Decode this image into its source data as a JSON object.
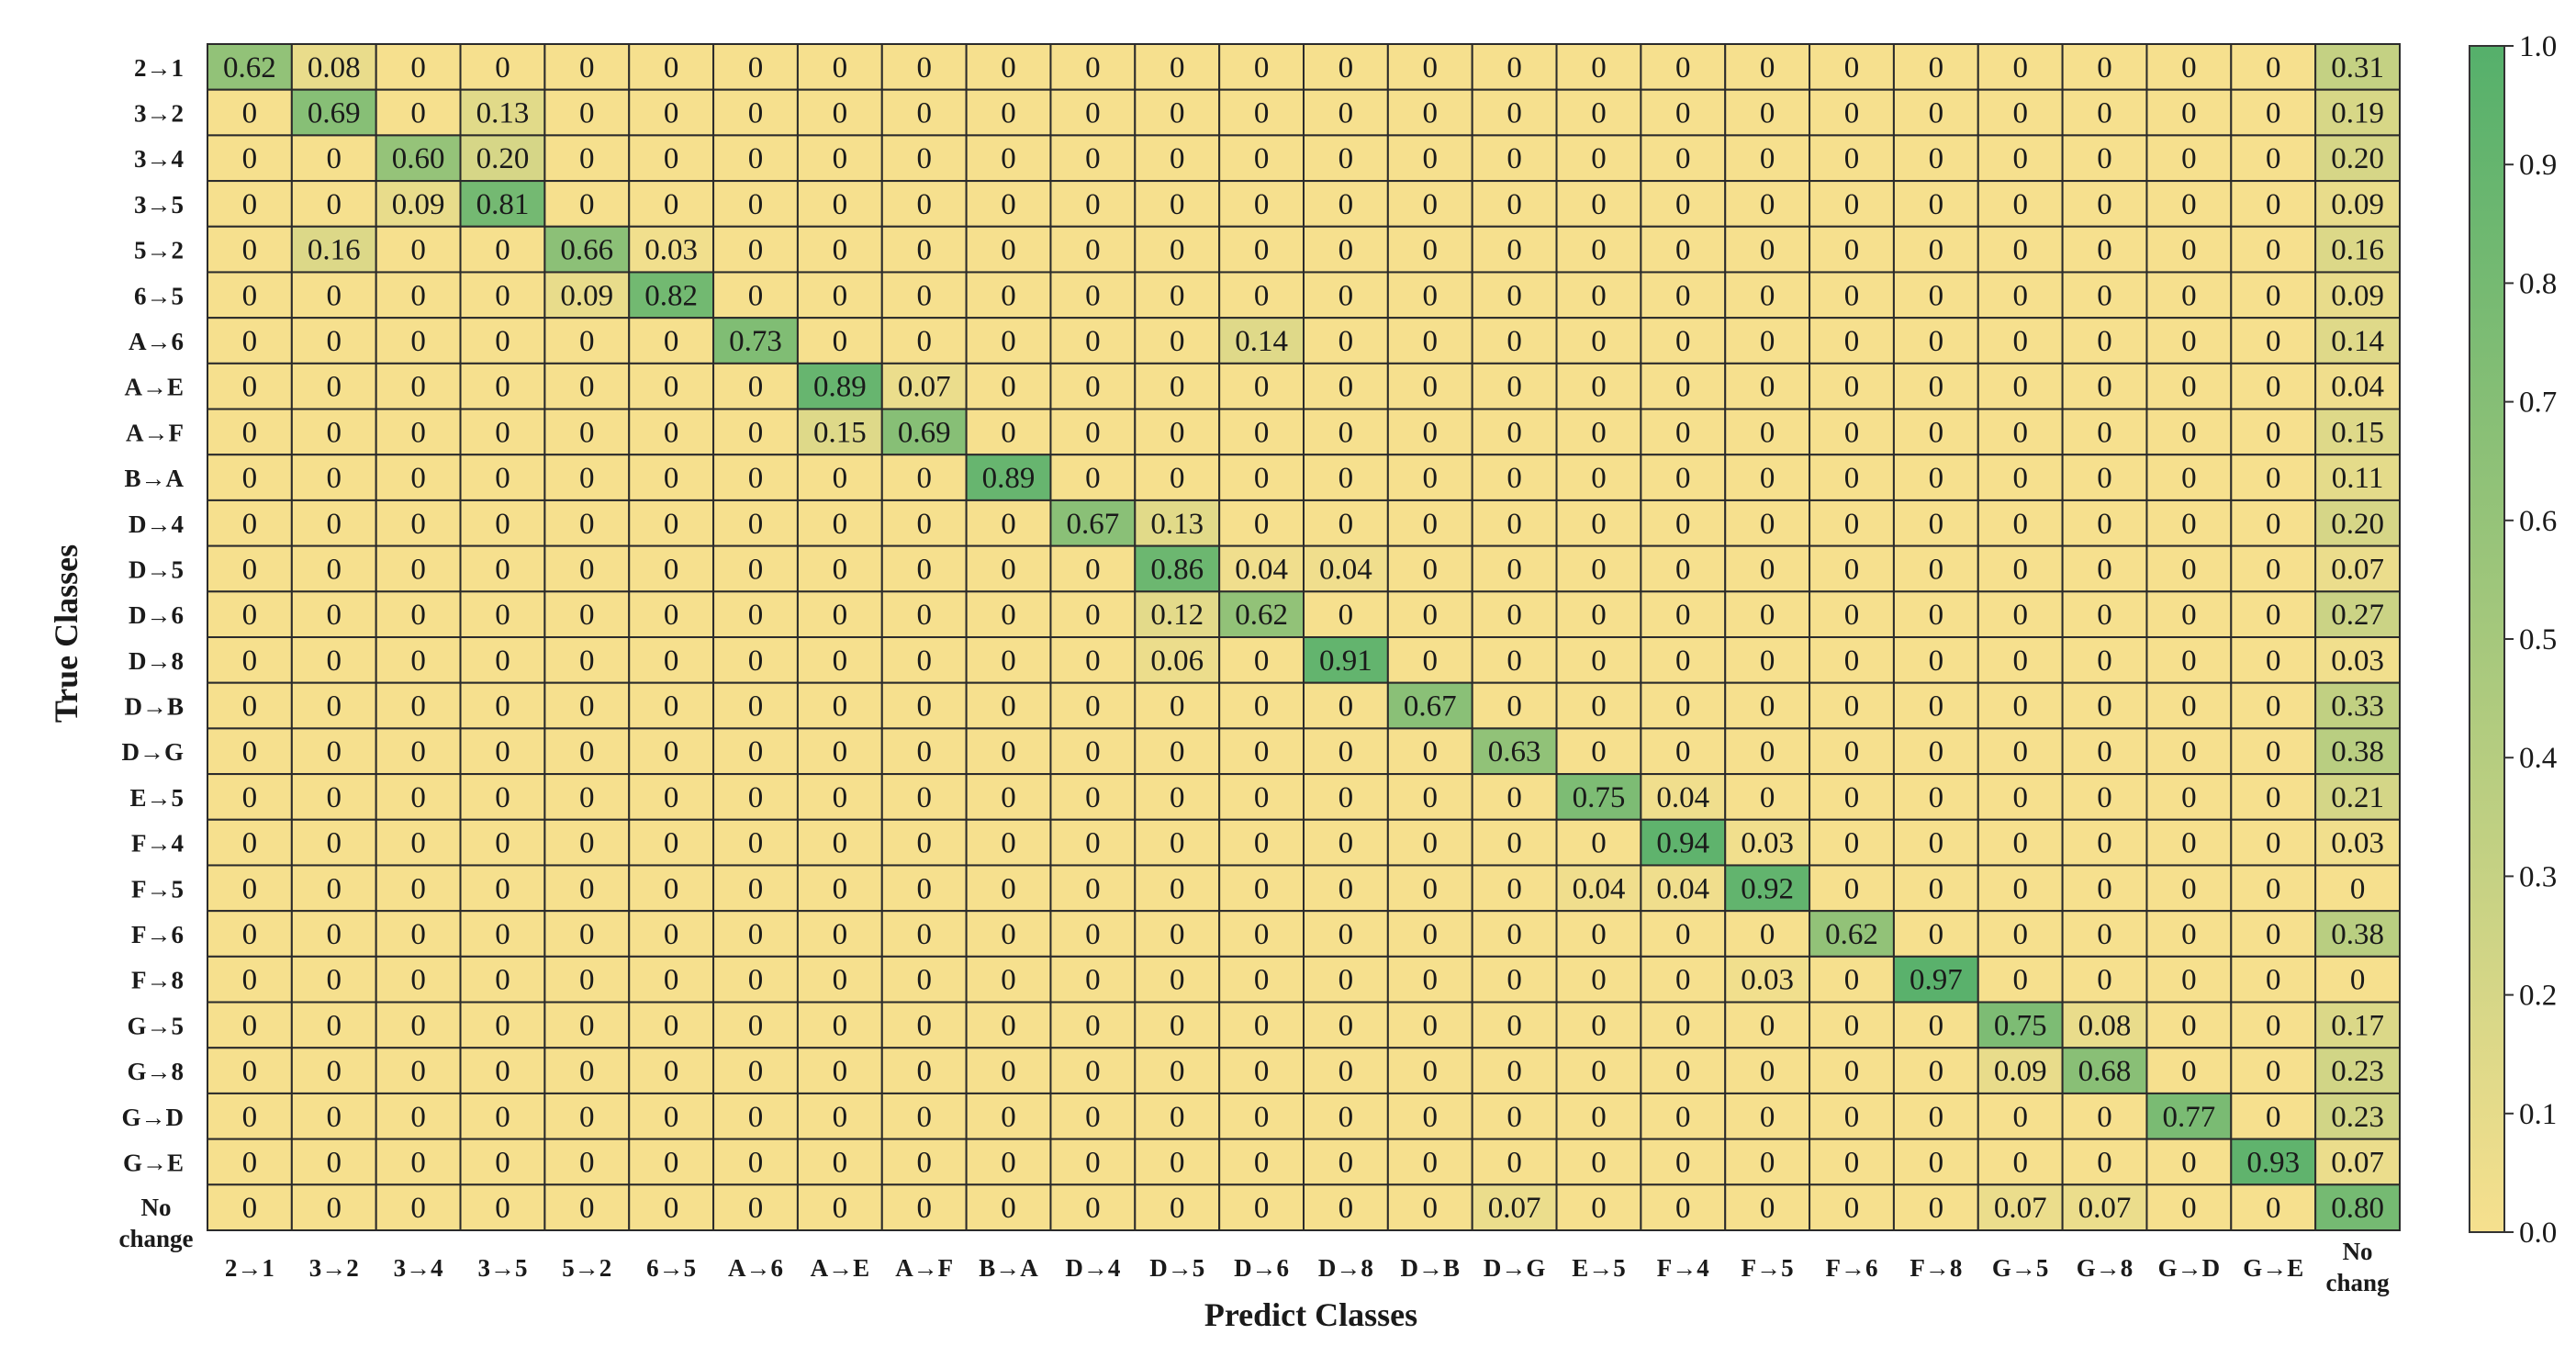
{
  "chart_data": {
    "type": "heatmap",
    "title": "",
    "xlabel": "Predict Classes",
    "ylabel": "True Classes",
    "row_labels": [
      "2→1",
      "3→2",
      "3→4",
      "3→5",
      "5→2",
      "6→5",
      "A→6",
      "A→E",
      "A→F",
      "B→A",
      "D→4",
      "D→5",
      "D→6",
      "D→8",
      "D→B",
      "D→G",
      "E→5",
      "F→4",
      "F→5",
      "F→6",
      "F→8",
      "G→5",
      "G→8",
      "G→D",
      "G→E",
      "No change"
    ],
    "col_labels": [
      "2→1",
      "3→2",
      "3→4",
      "3→5",
      "5→2",
      "6→5",
      "A→6",
      "A→E",
      "A→F",
      "B→A",
      "D→4",
      "D→5",
      "D→6",
      "D→8",
      "D→B",
      "D→G",
      "E→5",
      "F→4",
      "F→5",
      "F→6",
      "F→8",
      "G→5",
      "G→8",
      "G→D",
      "G→E",
      "No chang"
    ],
    "values": [
      [
        "0.62",
        "0.08",
        "0",
        "0",
        "0",
        "0",
        "0",
        "0",
        "0",
        "0",
        "0",
        "0",
        "0",
        "0",
        "0",
        "0",
        "0",
        "0",
        "0",
        "0",
        "0",
        "0",
        "0",
        "0",
        "0",
        "0.31"
      ],
      [
        "0",
        "0.69",
        "0",
        "0.13",
        "0",
        "0",
        "0",
        "0",
        "0",
        "0",
        "0",
        "0",
        "0",
        "0",
        "0",
        "0",
        "0",
        "0",
        "0",
        "0",
        "0",
        "0",
        "0",
        "0",
        "0",
        "0.19"
      ],
      [
        "0",
        "0",
        "0.60",
        "0.20",
        "0",
        "0",
        "0",
        "0",
        "0",
        "0",
        "0",
        "0",
        "0",
        "0",
        "0",
        "0",
        "0",
        "0",
        "0",
        "0",
        "0",
        "0",
        "0",
        "0",
        "0",
        "0.20"
      ],
      [
        "0",
        "0",
        "0.09",
        "0.81",
        "0",
        "0",
        "0",
        "0",
        "0",
        "0",
        "0",
        "0",
        "0",
        "0",
        "0",
        "0",
        "0",
        "0",
        "0",
        "0",
        "0",
        "0",
        "0",
        "0",
        "0",
        "0.09"
      ],
      [
        "0",
        "0.16",
        "0",
        "0",
        "0.66",
        "0.03",
        "0",
        "0",
        "0",
        "0",
        "0",
        "0",
        "0",
        "0",
        "0",
        "0",
        "0",
        "0",
        "0",
        "0",
        "0",
        "0",
        "0",
        "0",
        "0",
        "0.16"
      ],
      [
        "0",
        "0",
        "0",
        "0",
        "0.09",
        "0.82",
        "0",
        "0",
        "0",
        "0",
        "0",
        "0",
        "0",
        "0",
        "0",
        "0",
        "0",
        "0",
        "0",
        "0",
        "0",
        "0",
        "0",
        "0",
        "0",
        "0.09"
      ],
      [
        "0",
        "0",
        "0",
        "0",
        "0",
        "0",
        "0.73",
        "0",
        "0",
        "0",
        "0",
        "0",
        "0.14",
        "0",
        "0",
        "0",
        "0",
        "0",
        "0",
        "0",
        "0",
        "0",
        "0",
        "0",
        "0",
        "0.14"
      ],
      [
        "0",
        "0",
        "0",
        "0",
        "0",
        "0",
        "0",
        "0.89",
        "0.07",
        "0",
        "0",
        "0",
        "0",
        "0",
        "0",
        "0",
        "0",
        "0",
        "0",
        "0",
        "0",
        "0",
        "0",
        "0",
        "0",
        "0.04"
      ],
      [
        "0",
        "0",
        "0",
        "0",
        "0",
        "0",
        "0",
        "0.15",
        "0.69",
        "0",
        "0",
        "0",
        "0",
        "0",
        "0",
        "0",
        "0",
        "0",
        "0",
        "0",
        "0",
        "0",
        "0",
        "0",
        "0",
        "0.15"
      ],
      [
        "0",
        "0",
        "0",
        "0",
        "0",
        "0",
        "0",
        "0",
        "0",
        "0.89",
        "0",
        "0",
        "0",
        "0",
        "0",
        "0",
        "0",
        "0",
        "0",
        "0",
        "0",
        "0",
        "0",
        "0",
        "0",
        "0.11"
      ],
      [
        "0",
        "0",
        "0",
        "0",
        "0",
        "0",
        "0",
        "0",
        "0",
        "0",
        "0.67",
        "0.13",
        "0",
        "0",
        "0",
        "0",
        "0",
        "0",
        "0",
        "0",
        "0",
        "0",
        "0",
        "0",
        "0",
        "0.20"
      ],
      [
        "0",
        "0",
        "0",
        "0",
        "0",
        "0",
        "0",
        "0",
        "0",
        "0",
        "0",
        "0.86",
        "0.04",
        "0.04",
        "0",
        "0",
        "0",
        "0",
        "0",
        "0",
        "0",
        "0",
        "0",
        "0",
        "0",
        "0.07"
      ],
      [
        "0",
        "0",
        "0",
        "0",
        "0",
        "0",
        "0",
        "0",
        "0",
        "0",
        "0",
        "0.12",
        "0.62",
        "0",
        "0",
        "0",
        "0",
        "0",
        "0",
        "0",
        "0",
        "0",
        "0",
        "0",
        "0",
        "0.27"
      ],
      [
        "0",
        "0",
        "0",
        "0",
        "0",
        "0",
        "0",
        "0",
        "0",
        "0",
        "0",
        "0.06",
        "0",
        "0.91",
        "0",
        "0",
        "0",
        "0",
        "0",
        "0",
        "0",
        "0",
        "0",
        "0",
        "0",
        "0.03"
      ],
      [
        "0",
        "0",
        "0",
        "0",
        "0",
        "0",
        "0",
        "0",
        "0",
        "0",
        "0",
        "0",
        "0",
        "0",
        "0.67",
        "0",
        "0",
        "0",
        "0",
        "0",
        "0",
        "0",
        "0",
        "0",
        "0",
        "0.33"
      ],
      [
        "0",
        "0",
        "0",
        "0",
        "0",
        "0",
        "0",
        "0",
        "0",
        "0",
        "0",
        "0",
        "0",
        "0",
        "0",
        "0.63",
        "0",
        "0",
        "0",
        "0",
        "0",
        "0",
        "0",
        "0",
        "0",
        "0.38"
      ],
      [
        "0",
        "0",
        "0",
        "0",
        "0",
        "0",
        "0",
        "0",
        "0",
        "0",
        "0",
        "0",
        "0",
        "0",
        "0",
        "0",
        "0.75",
        "0.04",
        "0",
        "0",
        "0",
        "0",
        "0",
        "0",
        "0",
        "0.21"
      ],
      [
        "0",
        "0",
        "0",
        "0",
        "0",
        "0",
        "0",
        "0",
        "0",
        "0",
        "0",
        "0",
        "0",
        "0",
        "0",
        "0",
        "0",
        "0.94",
        "0.03",
        "0",
        "0",
        "0",
        "0",
        "0",
        "0",
        "0.03"
      ],
      [
        "0",
        "0",
        "0",
        "0",
        "0",
        "0",
        "0",
        "0",
        "0",
        "0",
        "0",
        "0",
        "0",
        "0",
        "0",
        "0",
        "0.04",
        "0.04",
        "0.92",
        "0",
        "0",
        "0",
        "0",
        "0",
        "0",
        "0"
      ],
      [
        "0",
        "0",
        "0",
        "0",
        "0",
        "0",
        "0",
        "0",
        "0",
        "0",
        "0",
        "0",
        "0",
        "0",
        "0",
        "0",
        "0",
        "0",
        "0",
        "0.62",
        "0",
        "0",
        "0",
        "0",
        "0",
        "0.38"
      ],
      [
        "0",
        "0",
        "0",
        "0",
        "0",
        "0",
        "0",
        "0",
        "0",
        "0",
        "0",
        "0",
        "0",
        "0",
        "0",
        "0",
        "0",
        "0",
        "0.03",
        "0",
        "0.97",
        "0",
        "0",
        "0",
        "0",
        "0"
      ],
      [
        "0",
        "0",
        "0",
        "0",
        "0",
        "0",
        "0",
        "0",
        "0",
        "0",
        "0",
        "0",
        "0",
        "0",
        "0",
        "0",
        "0",
        "0",
        "0",
        "0",
        "0",
        "0.75",
        "0.08",
        "0",
        "0",
        "0.17"
      ],
      [
        "0",
        "0",
        "0",
        "0",
        "0",
        "0",
        "0",
        "0",
        "0",
        "0",
        "0",
        "0",
        "0",
        "0",
        "0",
        "0",
        "0",
        "0",
        "0",
        "0",
        "0",
        "0.09",
        "0.68",
        "0",
        "0",
        "0.23"
      ],
      [
        "0",
        "0",
        "0",
        "0",
        "0",
        "0",
        "0",
        "0",
        "0",
        "0",
        "0",
        "0",
        "0",
        "0",
        "0",
        "0",
        "0",
        "0",
        "0",
        "0",
        "0",
        "0",
        "0",
        "0.77",
        "0",
        "0.23"
      ],
      [
        "0",
        "0",
        "0",
        "0",
        "0",
        "0",
        "0",
        "0",
        "0",
        "0",
        "0",
        "0",
        "0",
        "0",
        "0",
        "0",
        "0",
        "0",
        "0",
        "0",
        "0",
        "0",
        "0",
        "0",
        "0.93",
        "0.07"
      ],
      [
        "0",
        "0",
        "0",
        "0",
        "0",
        "0",
        "0",
        "0",
        "0",
        "0",
        "0",
        "0",
        "0",
        "0",
        "0",
        "0.07",
        "0",
        "0",
        "0",
        "0",
        "0",
        "0.07",
        "0.07",
        "0",
        "0",
        "0.80"
      ]
    ],
    "colorbar": {
      "min": 0.0,
      "max": 1.0,
      "ticks": [
        "0.0",
        "0.1",
        "0.2",
        "0.3",
        "0.4",
        "0.5",
        "0.6",
        "0.7",
        "0.8",
        "0.9",
        "1.0"
      ],
      "color_low": "#f6e08e",
      "color_high": "#55b06b"
    },
    "grid": true
  }
}
